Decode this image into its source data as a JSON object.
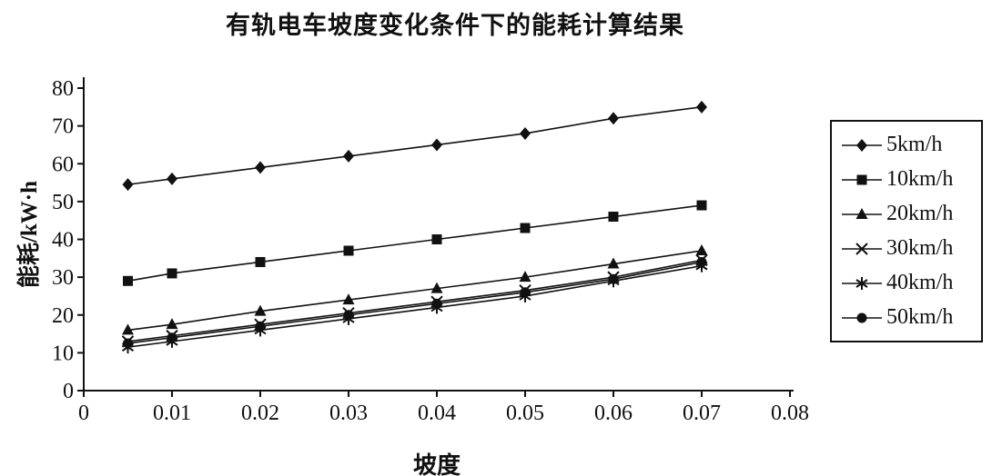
{
  "chart_data": {
    "type": "line",
    "title": "有轨电车坡度变化条件下的能耗计算结果",
    "xlabel": "坡度",
    "ylabel": "能耗/kW·h",
    "xlim": [
      0,
      0.08
    ],
    "ylim": [
      0,
      80
    ],
    "x_ticks": [
      0,
      0.01,
      0.02,
      0.03,
      0.04,
      0.05,
      0.06,
      0.07,
      0.08
    ],
    "y_ticks": [
      0,
      10,
      20,
      30,
      40,
      50,
      60,
      70,
      80
    ],
    "grid": false,
    "legend_position": "right",
    "line_color": "#111111",
    "x": [
      0.005,
      0.01,
      0.02,
      0.03,
      0.04,
      0.05,
      0.06,
      0.07
    ],
    "series": [
      {
        "name": "5km/h",
        "marker": "diamond",
        "values": [
          54.5,
          56,
          59,
          62,
          65,
          68,
          72,
          75
        ]
      },
      {
        "name": "10km/h",
        "marker": "square",
        "values": [
          29,
          31,
          34,
          37,
          40,
          43,
          46,
          49
        ]
      },
      {
        "name": "20km/h",
        "marker": "triangle",
        "values": [
          16,
          17.5,
          21,
          24,
          27,
          30,
          33.5,
          37
        ]
      },
      {
        "name": "30km/h",
        "marker": "x",
        "values": [
          13,
          14.5,
          17.5,
          20.5,
          23.5,
          26.5,
          30,
          34.5
        ]
      },
      {
        "name": "40km/h",
        "marker": "asterisk",
        "values": [
          11.5,
          13,
          16,
          19,
          22,
          25,
          29,
          33
        ]
      },
      {
        "name": "50km/h",
        "marker": "circle",
        "values": [
          12.5,
          14,
          17,
          20,
          23,
          26,
          29.5,
          34
        ]
      }
    ]
  }
}
